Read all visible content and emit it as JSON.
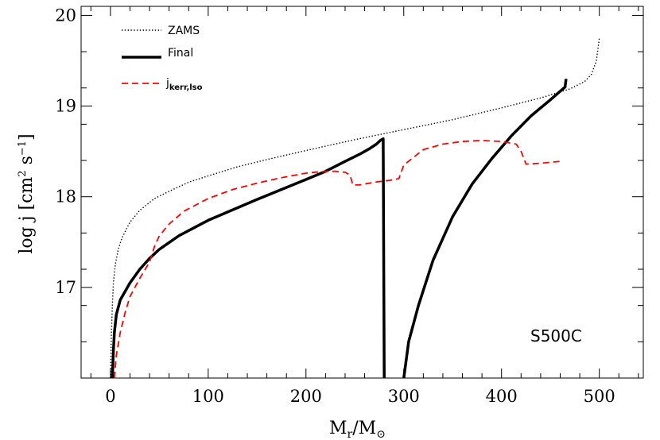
{
  "chart_data": {
    "type": "line",
    "xlabel": "M_r/M_⊙",
    "ylabel": "log j [cm² s⁻¹]",
    "xlim": [
      -30,
      545
    ],
    "ylim": [
      16.0,
      20.1
    ],
    "x_ticks": [
      0,
      100,
      200,
      300,
      400,
      500
    ],
    "y_ticks": [
      17,
      18,
      19,
      20
    ],
    "grid": false,
    "legend_position": "top-left",
    "annotation": "S500C",
    "series": [
      {
        "name": "ZAMS",
        "style": "dotted",
        "color": "#000000",
        "points": [
          [
            0,
            16.0
          ],
          [
            1,
            16.5
          ],
          [
            2,
            16.8
          ],
          [
            3,
            17.05
          ],
          [
            5,
            17.25
          ],
          [
            8,
            17.42
          ],
          [
            12,
            17.55
          ],
          [
            20,
            17.72
          ],
          [
            30,
            17.85
          ],
          [
            45,
            17.98
          ],
          [
            60,
            18.06
          ],
          [
            80,
            18.16
          ],
          [
            100,
            18.23
          ],
          [
            130,
            18.33
          ],
          [
            160,
            18.41
          ],
          [
            200,
            18.51
          ],
          [
            250,
            18.63
          ],
          [
            300,
            18.74
          ],
          [
            350,
            18.85
          ],
          [
            400,
            18.98
          ],
          [
            440,
            19.09
          ],
          [
            470,
            19.19
          ],
          [
            485,
            19.27
          ],
          [
            492,
            19.35
          ],
          [
            497,
            19.5
          ],
          [
            500,
            19.75
          ]
        ]
      },
      {
        "name": "Final",
        "style": "solid",
        "color": "#000000",
        "segments": [
          [
            [
              2,
              16.0
            ],
            [
              3,
              16.3
            ],
            [
              4,
              16.5
            ],
            [
              6,
              16.7
            ],
            [
              10,
              16.86
            ],
            [
              20,
              17.05
            ],
            [
              30,
              17.2
            ],
            [
              40,
              17.32
            ],
            [
              50,
              17.42
            ],
            [
              70,
              17.57
            ],
            [
              100,
              17.74
            ],
            [
              150,
              17.97
            ],
            [
              200,
              18.19
            ],
            [
              220,
              18.28
            ],
            [
              240,
              18.39
            ],
            [
              255,
              18.47
            ],
            [
              265,
              18.53
            ],
            [
              272,
              18.58
            ],
            [
              276,
              18.62
            ],
            [
              279,
              18.64
            ],
            [
              280,
              16.0
            ]
          ],
          [
            [
              300,
              16.0
            ],
            [
              305,
              16.4
            ],
            [
              315,
              16.8
            ],
            [
              330,
              17.3
            ],
            [
              350,
              17.78
            ],
            [
              370,
              18.14
            ],
            [
              390,
              18.42
            ],
            [
              410,
              18.67
            ],
            [
              430,
              18.89
            ],
            [
              450,
              19.07
            ],
            [
              465,
              19.21
            ],
            [
              466,
              19.3
            ]
          ]
        ]
      },
      {
        "name": "j_kerr,lso",
        "style": "dashed",
        "color": "#ff0000",
        "segments": [
          [
            [
              4,
              16.0
            ],
            [
              6,
              16.25
            ],
            [
              10,
              16.5
            ],
            [
              15,
              16.72
            ],
            [
              20,
              16.9
            ],
            [
              30,
              17.1
            ],
            [
              40,
              17.28
            ],
            [
              45,
              17.45
            ],
            [
              50,
              17.57
            ],
            [
              60,
              17.7
            ],
            [
              75,
              17.84
            ],
            [
              100,
              17.98
            ],
            [
              125,
              18.08
            ],
            [
              150,
              18.15
            ],
            [
              175,
              18.21
            ],
            [
              200,
              18.26
            ],
            [
              220,
              18.28
            ],
            [
              230,
              18.28
            ],
            [
              240,
              18.27
            ],
            [
              245,
              18.24
            ],
            [
              248,
              18.13
            ],
            [
              255,
              18.13
            ],
            [
              270,
              18.16
            ],
            [
              285,
              18.18
            ],
            [
              295,
              18.2
            ],
            [
              300,
              18.35
            ],
            [
              320,
              18.52
            ],
            [
              340,
              18.58
            ],
            [
              360,
              18.61
            ],
            [
              380,
              18.62
            ],
            [
              400,
              18.61
            ],
            [
              415,
              18.58
            ],
            [
              420,
              18.5
            ],
            [
              425,
              18.36
            ],
            [
              440,
              18.37
            ],
            [
              460,
              18.39
            ]
          ]
        ]
      }
    ]
  },
  "legend": [
    {
      "label": "ZAMS"
    },
    {
      "label": "Final"
    },
    {
      "label_main": "j",
      "label_sub": "kerr,lso"
    }
  ],
  "axis_labels": {
    "x_main": "M",
    "x_sub": "r",
    "x_mid": "/M",
    "x_sun": "⊙",
    "y_main": "log j [cm",
    "y_sup1": "2",
    "y_mid": " s",
    "y_sup2": "−1",
    "y_end": "]"
  }
}
